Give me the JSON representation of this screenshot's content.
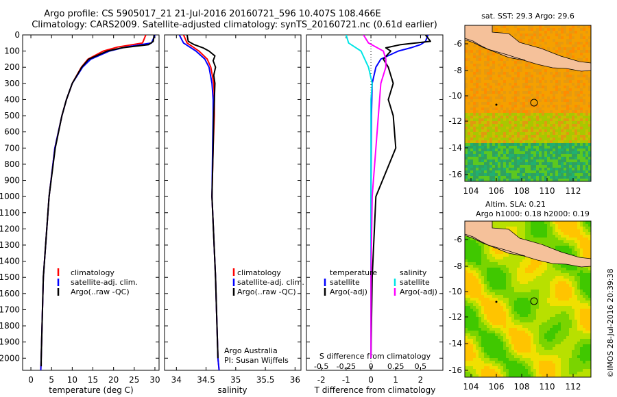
{
  "header": {
    "title_line1": "Argo profile: CS 5905017_21 21-Jul-2016 20160721_596 10.407S 108.466E",
    "title_line2": "Climatology: CARS2009. Satellite-adjusted climatology: synTS_20160721.nc (0.61d earlier)"
  },
  "colors": {
    "climatology": "#ff0000",
    "satellite": "#0000ff",
    "argo": "#000000",
    "sal_satellite": "#00e5e5",
    "sal_argo": "#ff00ff"
  },
  "chart_data": [
    {
      "id": "temperature",
      "type": "line",
      "xlabel": "temperature (deg C)",
      "ylabel": "",
      "xlim": [
        -2,
        31
      ],
      "ylim": [
        2075,
        0
      ],
      "xticks": [
        0,
        5,
        10,
        15,
        20,
        25,
        30
      ],
      "yticks": [
        0,
        100,
        200,
        300,
        400,
        500,
        600,
        700,
        800,
        900,
        1000,
        1100,
        1200,
        1300,
        1400,
        1500,
        1600,
        1700,
        1800,
        1900,
        2000
      ],
      "legend": [
        "climatology",
        "satellite-adj. clim.",
        "Argo(..raw -QC)"
      ],
      "series": [
        {
          "name": "climatology",
          "color": "climatology",
          "depth": [
            0,
            50,
            75,
            100,
            150,
            200,
            300,
            400,
            500,
            700,
            1000,
            1500,
            2000,
            2075
          ],
          "values": [
            27.8,
            27.0,
            21.0,
            17.5,
            13.8,
            12.2,
            10.0,
            8.6,
            7.5,
            5.8,
            4.4,
            3.0,
            2.5,
            2.4
          ]
        },
        {
          "name": "satellite-adj. clim.",
          "color": "satellite",
          "depth": [
            0,
            50,
            75,
            100,
            150,
            200,
            300,
            400,
            500,
            700,
            1000,
            1500,
            2000,
            2075
          ],
          "values": [
            30.0,
            29.2,
            23.0,
            19.0,
            14.5,
            12.5,
            10.0,
            8.6,
            7.5,
            5.8,
            4.4,
            3.0,
            2.5,
            2.4
          ]
        },
        {
          "name": "Argo(..raw -QC)",
          "color": "argo",
          "depth": [
            0,
            40,
            60,
            80,
            100,
            150,
            200,
            300,
            400,
            500,
            700,
            1000,
            1500,
            2000,
            2050
          ],
          "values": [
            29.8,
            29.6,
            28.5,
            22.0,
            18.5,
            14.0,
            12.3,
            10.0,
            8.6,
            7.5,
            5.9,
            4.4,
            3.0,
            2.5,
            2.5
          ]
        }
      ]
    },
    {
      "id": "salinity",
      "type": "line",
      "xlabel": "salinity",
      "ylabel": "",
      "xlim": [
        33.8,
        36.1
      ],
      "ylim": [
        2075,
        0
      ],
      "xticks": [
        34,
        34.5,
        35,
        35.5,
        36
      ],
      "legend": [
        "climatology",
        "satellite-adj. clim.",
        "Argo(..raw -QC)"
      ],
      "annotation": [
        "Argo Australia",
        "PI: Susan Wijffels"
      ],
      "series": [
        {
          "name": "climatology",
          "color": "climatology",
          "depth": [
            0,
            50,
            100,
            150,
            200,
            300,
            400,
            500,
            700,
            1000,
            1500,
            2000,
            2075
          ],
          "values": [
            34.12,
            34.18,
            34.38,
            34.52,
            34.58,
            34.63,
            34.64,
            34.64,
            34.62,
            34.6,
            34.66,
            34.7,
            34.72
          ]
        },
        {
          "name": "satellite-adj. clim.",
          "color": "satellite",
          "depth": [
            0,
            50,
            100,
            150,
            200,
            300,
            400,
            500,
            700,
            1000,
            1500,
            2000,
            2075
          ],
          "values": [
            34.05,
            34.12,
            34.33,
            34.48,
            34.55,
            34.6,
            34.62,
            34.62,
            34.61,
            34.6,
            34.66,
            34.7,
            34.72
          ]
        },
        {
          "name": "Argo(..raw -QC)",
          "color": "argo",
          "depth": [
            0,
            40,
            60,
            80,
            100,
            130,
            160,
            200,
            250,
            300,
            400,
            500,
            700,
            1000,
            1500,
            2000
          ],
          "values": [
            34.18,
            34.2,
            34.3,
            34.45,
            34.55,
            34.65,
            34.62,
            34.66,
            34.63,
            34.65,
            34.64,
            34.63,
            34.62,
            34.6,
            34.66,
            34.7
          ]
        }
      ]
    },
    {
      "id": "difference",
      "type": "line",
      "xlabel": "T difference from climatology",
      "xlabel_top": "S difference from climatology",
      "xlim": [
        -2.6,
        2.9
      ],
      "ylim": [
        2075,
        0
      ],
      "xticks": [
        -2,
        -1,
        0,
        1,
        2
      ],
      "xticks_top_labels": [
        "-0.5",
        "-0.25",
        "0",
        "0.25",
        "0.5"
      ],
      "xticks_top_positions": [
        -2,
        -1,
        0,
        1,
        2
      ],
      "legend_left_title": "temperature",
      "legend_right_title": "salinity",
      "legend_left": [
        "satellite",
        "Argo(-adj)"
      ],
      "legend_right": [
        "satellite",
        "Argo(-adj)"
      ],
      "series": [
        {
          "name": "T satellite",
          "color": "satellite",
          "depth": [
            0,
            40,
            60,
            80,
            100,
            150,
            200,
            300,
            500,
            1000,
            2000
          ],
          "values": [
            2.3,
            2.2,
            2.0,
            1.6,
            1.1,
            0.4,
            0.2,
            0.05,
            0.02,
            0,
            0
          ]
        },
        {
          "name": "T Argo(-adj)",
          "color": "argo",
          "depth": [
            0,
            40,
            60,
            80,
            100,
            150,
            200,
            300,
            400,
            500,
            700,
            1000,
            1500,
            2000
          ],
          "values": [
            2.2,
            2.4,
            1.2,
            0.6,
            0.8,
            0.5,
            0.7,
            0.9,
            0.7,
            0.9,
            1.0,
            0.2,
            0.05,
            0.0
          ]
        },
        {
          "name": "S satellite",
          "color": "sal_satellite",
          "depth": [
            0,
            50,
            100,
            200,
            300,
            400,
            500,
            1000,
            2000
          ],
          "values": [
            -1.0,
            -0.9,
            -0.4,
            -0.1,
            0.05,
            0.0,
            0.0,
            0.0,
            0.0
          ]
        },
        {
          "name": "S Argo(-adj)",
          "color": "sal_argo",
          "depth": [
            0,
            50,
            100,
            150,
            200,
            300,
            500,
            700,
            1000,
            1500,
            2000
          ],
          "values": [
            -0.3,
            -0.1,
            0.5,
            0.6,
            0.6,
            0.4,
            0.3,
            0.2,
            0.05,
            0.0,
            0.0
          ]
        }
      ]
    }
  ],
  "maps": {
    "sst": {
      "title": "sat. SST: 29.3 Argo: 29.6",
      "lon_ticks": [
        "104",
        "106",
        "108",
        "110",
        "112"
      ],
      "lat_ticks": [
        "-6",
        "-8",
        "-10",
        "-12",
        "-14",
        "-16"
      ],
      "marker": {
        "lon": 108.466,
        "lat": -10.407
      }
    },
    "sla": {
      "title_line1": "Altim. SLA: 0.21",
      "title_line2": "Argo h1000: 0.18 h2000: 0.19",
      "lon_ticks": [
        "104",
        "106",
        "108",
        "110",
        "112"
      ],
      "lat_ticks": [
        "-6",
        "-8",
        "-10",
        "-12",
        "-14",
        "-16"
      ],
      "marker": {
        "lon": 108.466,
        "lat": -10.407
      }
    }
  },
  "side_label": "©IMOS 28-Jul-2016 20:39:38"
}
